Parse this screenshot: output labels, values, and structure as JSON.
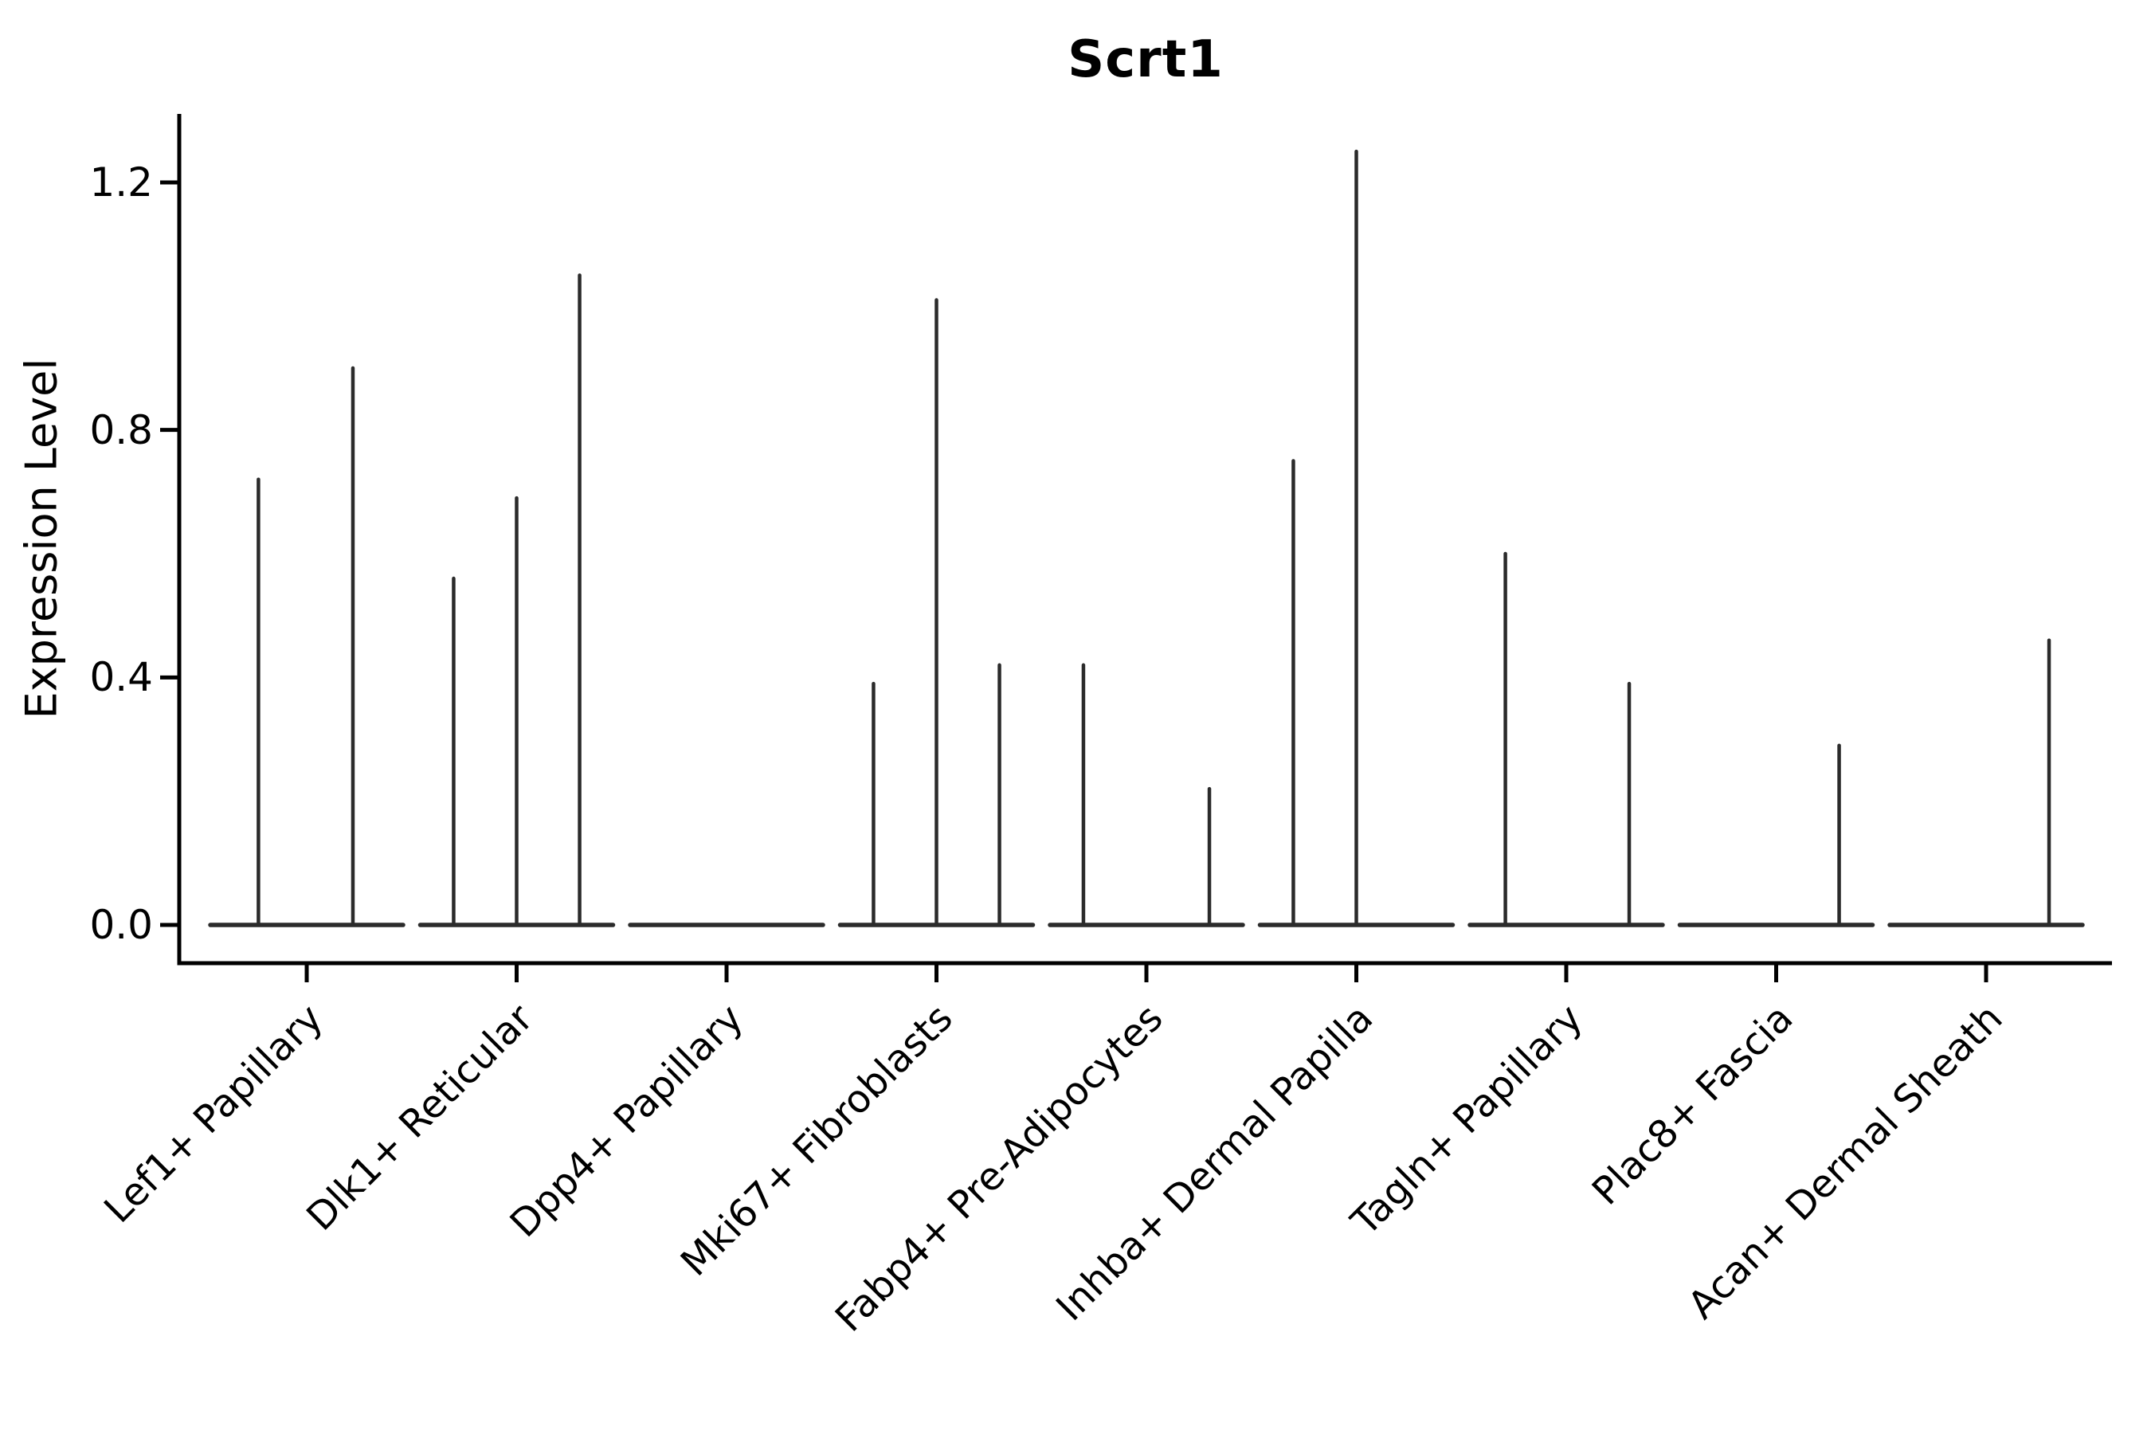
{
  "figure": {
    "title": "Scrt1",
    "background": "#ffffff"
  },
  "colors": {
    "ink": "#000000",
    "violin": "#2b2b2b",
    "background": "#ffffff"
  },
  "chart_data": {
    "type": "violin",
    "title": "Scrt1",
    "xlabel": "",
    "ylabel": "Expression Level",
    "legend_position": "none",
    "grid": false,
    "ylim": [
      -0.06,
      1.31
    ],
    "yticks": [
      0.0,
      0.4,
      0.8,
      1.2
    ],
    "ytick_labels": [
      "0.0",
      "0.4",
      "0.8",
      "1.2"
    ],
    "categories": [
      "Lef1+ Papillary",
      "Dlk1+ Reticular",
      "Dpp4+ Papillary",
      "Mki67+ Fibroblasts",
      "Fabp4+ Pre-Adipocytes",
      "Inhba+ Dermal Papilla",
      "Tagln+ Papillary",
      "Plac8+ Fascia",
      "Acan+ Dermal Sheath"
    ],
    "series": [
      {
        "category": "Lef1+ Papillary",
        "zero_body": true,
        "spikes": [
          {
            "offset": -0.23,
            "value": 0.72
          },
          {
            "offset": 0.22,
            "value": 0.9
          }
        ]
      },
      {
        "category": "Dlk1+ Reticular",
        "zero_body": true,
        "spikes": [
          {
            "offset": -0.3,
            "value": 0.56
          },
          {
            "offset": 0.0,
            "value": 0.69
          },
          {
            "offset": 0.3,
            "value": 1.05
          }
        ]
      },
      {
        "category": "Dpp4+ Papillary",
        "zero_body": true,
        "spikes": []
      },
      {
        "category": "Mki67+ Fibroblasts",
        "zero_body": true,
        "spikes": [
          {
            "offset": -0.3,
            "value": 0.39
          },
          {
            "offset": 0.0,
            "value": 1.01
          },
          {
            "offset": 0.3,
            "value": 0.42
          }
        ]
      },
      {
        "category": "Fabp4+ Pre-Adipocytes",
        "zero_body": true,
        "spikes": [
          {
            "offset": -0.3,
            "value": 0.42
          },
          {
            "offset": 0.3,
            "value": 0.22
          }
        ]
      },
      {
        "category": "Inhba+ Dermal Papilla",
        "zero_body": true,
        "spikes": [
          {
            "offset": -0.3,
            "value": 0.75
          },
          {
            "offset": 0.0,
            "value": 1.25
          }
        ]
      },
      {
        "category": "Tagln+ Papillary",
        "zero_body": true,
        "spikes": [
          {
            "offset": -0.29,
            "value": 0.6
          },
          {
            "offset": 0.3,
            "value": 0.39
          }
        ]
      },
      {
        "category": "Plac8+ Fascia",
        "zero_body": true,
        "spikes": [
          {
            "offset": 0.3,
            "value": 0.29
          }
        ]
      },
      {
        "category": "Acan+ Dermal Sheath",
        "zero_body": true,
        "spikes": [
          {
            "offset": 0.3,
            "value": 0.46
          }
        ]
      }
    ]
  }
}
